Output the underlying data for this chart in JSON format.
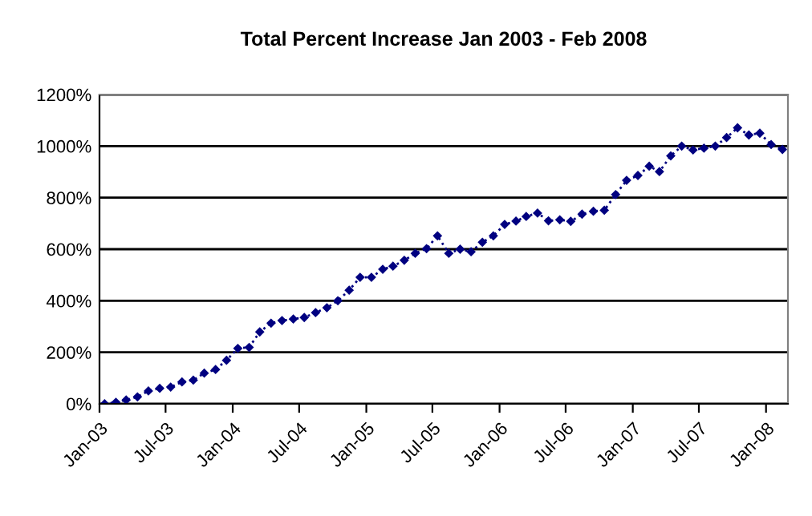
{
  "chart_data": {
    "type": "line",
    "title": "Total Percent Increase Jan 2003 - Feb 2008",
    "x": [
      "2003-01-15",
      "2003-02-15",
      "2003-03-15",
      "2003-04-15",
      "2003-05-15",
      "2003-06-15",
      "2003-07-15",
      "2003-08-15",
      "2003-09-15",
      "2003-10-15",
      "2003-11-15",
      "2003-12-15",
      "2004-01-15",
      "2004-02-15",
      "2004-03-15",
      "2004-04-15",
      "2004-05-15",
      "2004-06-15",
      "2004-07-15",
      "2004-08-15",
      "2004-09-15",
      "2004-10-15",
      "2004-11-15",
      "2004-12-15",
      "2005-01-15",
      "2005-02-15",
      "2005-03-15",
      "2005-04-15",
      "2005-05-15",
      "2005-06-15",
      "2005-07-15",
      "2005-08-15",
      "2005-09-15",
      "2005-10-15",
      "2005-11-15",
      "2005-12-15",
      "2006-01-15",
      "2006-02-15",
      "2006-03-15",
      "2006-04-15",
      "2006-05-15",
      "2006-06-15",
      "2006-07-15",
      "2006-08-15",
      "2006-09-15",
      "2006-10-15",
      "2006-11-15",
      "2006-12-15",
      "2007-01-15",
      "2007-02-15",
      "2007-03-15",
      "2007-04-15",
      "2007-05-15",
      "2007-06-15",
      "2007-07-15",
      "2007-08-15",
      "2007-09-15",
      "2007-10-15",
      "2007-11-15",
      "2007-12-15",
      "2008-01-15",
      "2008-02-15"
    ],
    "series": [
      {
        "color": "#000080",
        "values": [
          0,
          6,
          15,
          27,
          50,
          60,
          65,
          85,
          92,
          119,
          133,
          169,
          215,
          219,
          279,
          313,
          323,
          329,
          335,
          354,
          373,
          400,
          441,
          491,
          491,
          522,
          534,
          557,
          584,
          602,
          652,
          584,
          600,
          590,
          627,
          652,
          696,
          709,
          727,
          740,
          710,
          714,
          708,
          736,
          747,
          751,
          812,
          867,
          886,
          922,
          901,
          962,
          1000,
          985,
          992,
          1000,
          1033,
          1071,
          1043,
          1050,
          1006,
          987
        ]
      }
    ],
    "xlim": [
      "2003-01-01",
      "2008-03-01"
    ],
    "xticks": [
      {
        "value": "2003-01-01",
        "label": "Jan-03"
      },
      {
        "value": "2003-07-01",
        "label": "Jul-03"
      },
      {
        "value": "2004-01-01",
        "label": "Jan-04"
      },
      {
        "value": "2004-07-01",
        "label": "Jul-04"
      },
      {
        "value": "2005-01-01",
        "label": "Jan-05"
      },
      {
        "value": "2005-07-01",
        "label": "Jul-05"
      },
      {
        "value": "2006-01-01",
        "label": "Jan-06"
      },
      {
        "value": "2006-07-01",
        "label": "Jul-06"
      },
      {
        "value": "2007-01-01",
        "label": "Jan-07"
      },
      {
        "value": "2007-07-01",
        "label": "Jul-07"
      },
      {
        "value": "2008-01-01",
        "label": "Jan-08"
      }
    ],
    "ylim": [
      0,
      1200
    ],
    "yticks": [
      {
        "value": 0,
        "label": "0%"
      },
      {
        "value": 200,
        "label": "200%"
      },
      {
        "value": 400,
        "label": "400%"
      },
      {
        "value": 600,
        "label": "600%"
      },
      {
        "value": 800,
        "label": "800%"
      },
      {
        "value": 1000,
        "label": "1000%"
      },
      {
        "value": 1200,
        "label": "1200%"
      }
    ],
    "grid": "y",
    "marker": "diamond",
    "line_style": "dotted"
  }
}
